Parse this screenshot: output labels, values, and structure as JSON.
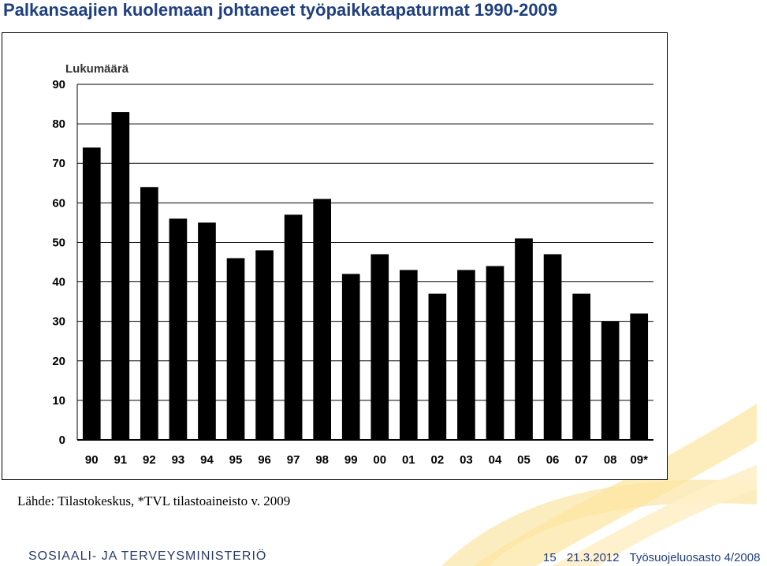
{
  "title": "Palkansaajien kuolemaan johtaneet työpaikkatapaturmat 1990-2009",
  "chart_data": {
    "type": "bar",
    "title": "Palkansaajien kuolemaan johtaneet työpaikkatapaturmat 1990-2009",
    "ylabel": "Lukumäärä",
    "xlabel": "",
    "categories": [
      "90",
      "91",
      "92",
      "93",
      "94",
      "95",
      "96",
      "97",
      "98",
      "99",
      "00",
      "01",
      "02",
      "03",
      "04",
      "05",
      "06",
      "07",
      "08",
      "09*"
    ],
    "values": [
      74,
      83,
      64,
      56,
      55,
      46,
      48,
      57,
      61,
      42,
      47,
      43,
      37,
      43,
      44,
      51,
      47,
      37,
      30,
      32
    ],
    "ylim": [
      0,
      90
    ],
    "yticks": [
      "0",
      "10",
      "20",
      "30",
      "40",
      "50",
      "60",
      "70",
      "80",
      "90"
    ],
    "grid": true,
    "bar_color": "#000000"
  },
  "source": "Lähde: Tilastokeskus, *TVL tilastoaineisto v. 2009",
  "footer": {
    "ministry": "SOSIAALI- JA TERVEYSMINISTERIÖ",
    "page": "15",
    "date": "21.3.2012",
    "department": "Työsuojeluosasto 4/2008"
  }
}
